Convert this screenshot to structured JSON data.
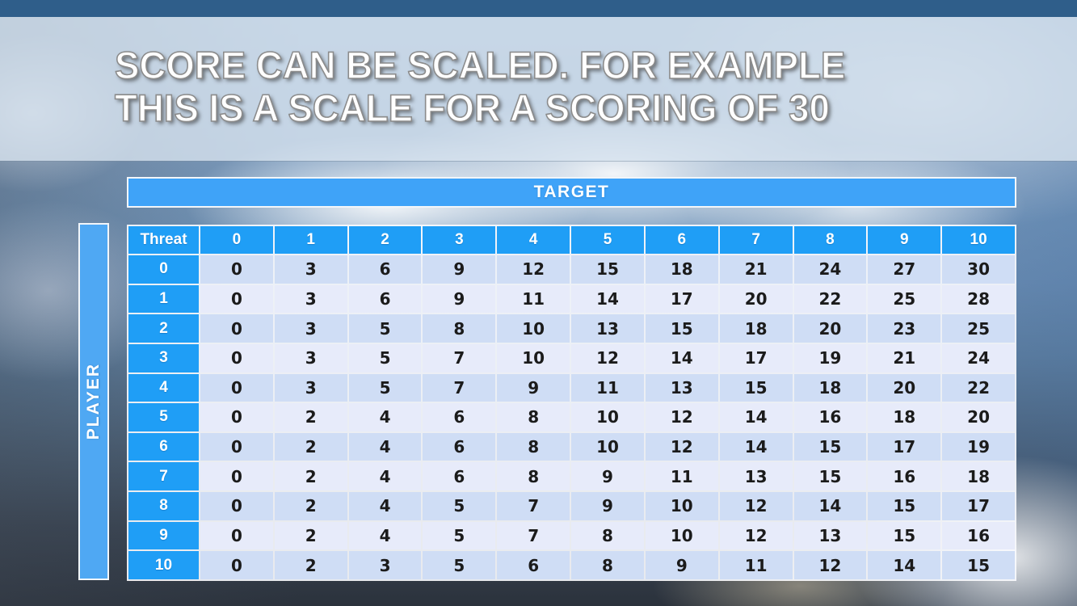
{
  "slide": {
    "title_line1": "SCORE CAN BE SCALED. FOR EXAMPLE",
    "title_line2": "THIS IS A SCALE FOR A SCORING OF 30"
  },
  "table": {
    "target_label": "TARGET",
    "player_label": "PLAYER",
    "corner_label": "Threat",
    "column_headers": [
      "0",
      "1",
      "2",
      "3",
      "4",
      "5",
      "6",
      "7",
      "8",
      "9",
      "10"
    ],
    "row_headers": [
      "0",
      "1",
      "2",
      "3",
      "4",
      "5",
      "6",
      "7",
      "8",
      "9",
      "10"
    ],
    "values": [
      [
        0,
        3,
        6,
        9,
        12,
        15,
        18,
        21,
        24,
        27,
        30
      ],
      [
        0,
        3,
        6,
        9,
        11,
        14,
        17,
        20,
        22,
        25,
        28
      ],
      [
        0,
        3,
        5,
        8,
        10,
        13,
        15,
        18,
        20,
        23,
        25
      ],
      [
        0,
        3,
        5,
        7,
        10,
        12,
        14,
        17,
        19,
        21,
        24
      ],
      [
        0,
        3,
        5,
        7,
        9,
        11,
        13,
        15,
        18,
        20,
        22
      ],
      [
        0,
        2,
        4,
        6,
        8,
        10,
        12,
        14,
        16,
        18,
        20
      ],
      [
        0,
        2,
        4,
        6,
        8,
        10,
        12,
        14,
        15,
        17,
        19
      ],
      [
        0,
        2,
        4,
        6,
        8,
        9,
        11,
        13,
        15,
        16,
        18
      ],
      [
        0,
        2,
        4,
        5,
        7,
        9,
        10,
        12,
        14,
        15,
        17
      ],
      [
        0,
        2,
        4,
        5,
        7,
        8,
        10,
        12,
        13,
        15,
        16
      ],
      [
        0,
        2,
        3,
        5,
        6,
        8,
        9,
        11,
        12,
        14,
        15
      ]
    ]
  },
  "colors": {
    "top_bar_blue": "#2f5e8a",
    "header_blue": "#1f9ef6",
    "bar_blue": "#3fa3f8",
    "row_dark": "#cfddf5",
    "row_light": "#e7ebfa",
    "title_text": "#ffffff"
  }
}
